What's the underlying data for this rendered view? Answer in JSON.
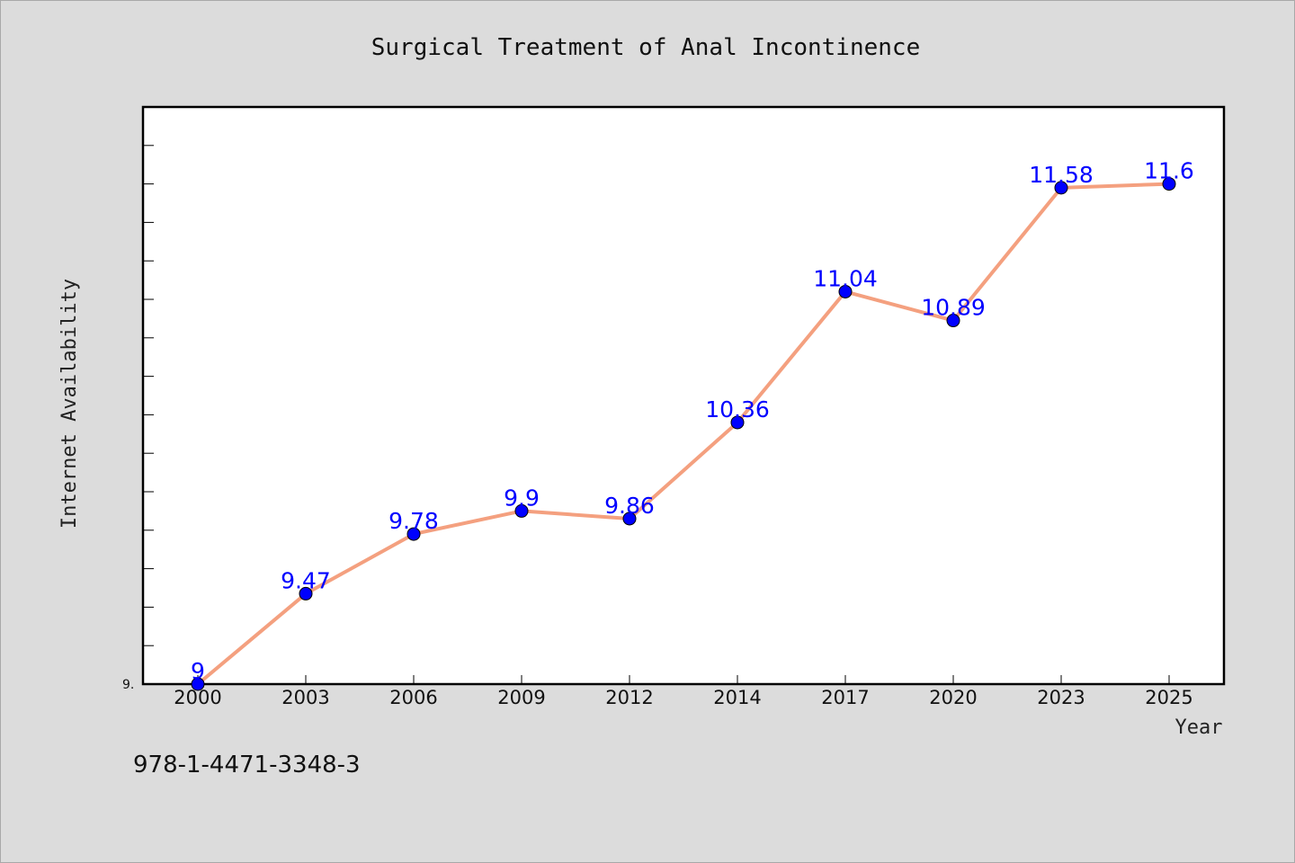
{
  "chart_data": {
    "type": "line",
    "title": "Surgical Treatment of Anal Incontinence",
    "xlabel": "Year",
    "ylabel": "Internet Availability",
    "categories": [
      "2000",
      "2003",
      "2006",
      "2009",
      "2012",
      "2014",
      "2017",
      "2020",
      "2023",
      "2025"
    ],
    "series": [
      {
        "values": [
          9,
          9.47,
          9.78,
          9.9,
          9.86,
          10.36,
          11.04,
          10.89,
          11.58,
          11.6
        ]
      }
    ],
    "data_labels": [
      "9",
      "9.47",
      "9.78",
      "9.9",
      "9.86",
      "10.36",
      "11.04",
      "10.89",
      "11.58",
      "11.6"
    ],
    "ylim": [
      9,
      12
    ],
    "ytick_labels": [
      "9."
    ],
    "grid": false,
    "colors": {
      "line": "#f4a07f",
      "marker": "#0000ff",
      "label": "#0000ff",
      "plot_bg": "#ffffff",
      "page_bg": "#dcdcdc"
    }
  },
  "footer": {
    "isbn": "978-1-4471-3348-3"
  }
}
